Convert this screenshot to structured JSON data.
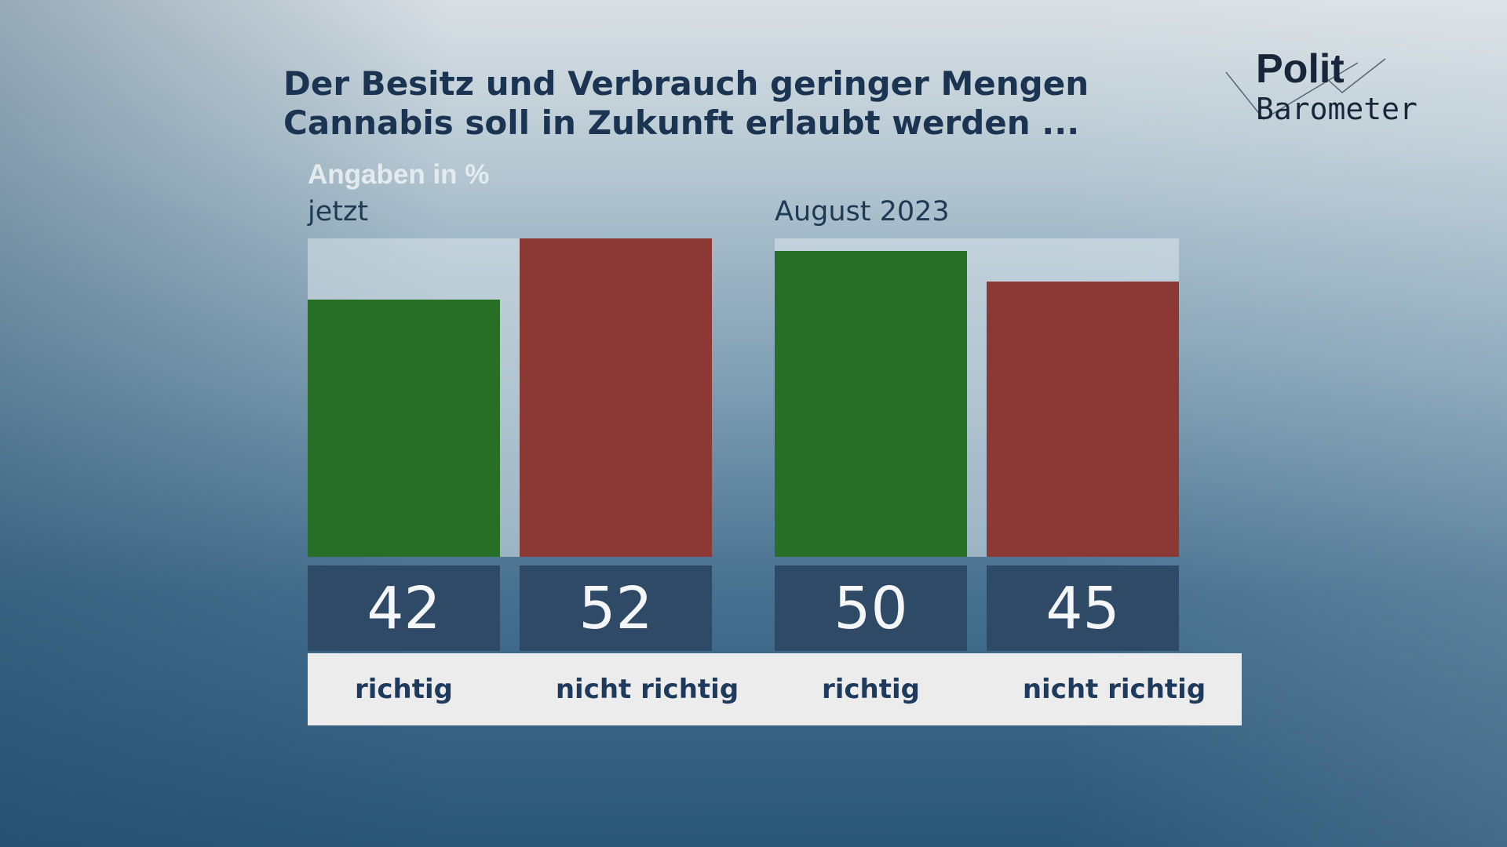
{
  "title_line1": "Der Besitz und Verbrauch geringer Mengen",
  "title_line2": "Cannabis soll in Zukunft erlaubt werden ...",
  "logo": {
    "line1": "Polit",
    "line2": "Barometer"
  },
  "chart_data": {
    "type": "bar",
    "unit_label": "Angaben in %",
    "ylim": [
      0,
      52
    ],
    "groups": [
      {
        "name": "jetzt",
        "categories": [
          "richtig",
          "nicht richtig"
        ],
        "values": [
          42,
          52
        ]
      },
      {
        "name": "August 2023",
        "categories": [
          "richtig",
          "nicht richtig"
        ],
        "values": [
          50,
          45
        ]
      }
    ],
    "colors": {
      "richtig": "#276e27",
      "nicht richtig": "#8c3834"
    }
  }
}
